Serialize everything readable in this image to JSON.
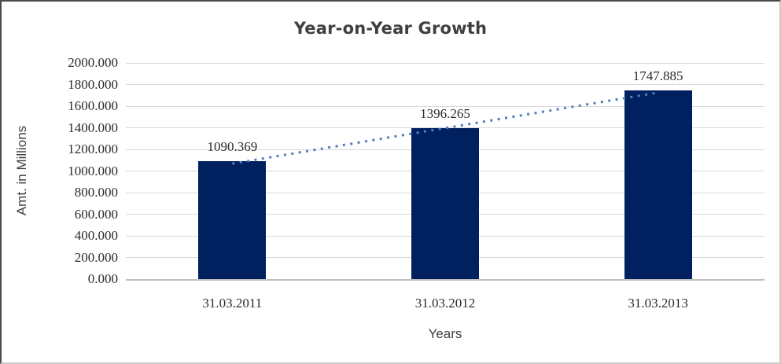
{
  "chart_data": {
    "type": "bar",
    "title": "Year-on-Year Growth",
    "xlabel": "Years",
    "ylabel": "Amt. in Millions",
    "categories": [
      "31.03.2011",
      "31.03.2012",
      "31.03.2013"
    ],
    "values": [
      1090.369,
      1396.265,
      1747.885
    ],
    "data_labels": [
      "1090.369",
      "1396.265",
      "1747.885"
    ],
    "ylim": [
      0,
      2000
    ],
    "ytick_step": 200,
    "ytick_labels": [
      "2000.000",
      "1800.000",
      "1600.000",
      "1400.000",
      "1200.000",
      "1000.000",
      "800.000",
      "600.000",
      "400.000",
      "200.000",
      "0.000"
    ],
    "grid": "horizontal-major",
    "legend": "none",
    "bar_color": "#002060",
    "gridline_color": "#d9d9d9",
    "axis_line_color": "#bfbfbf",
    "text_color": "#404040",
    "trendline": {
      "type": "linear",
      "style": "dotted",
      "color": "#4f81bd"
    }
  }
}
